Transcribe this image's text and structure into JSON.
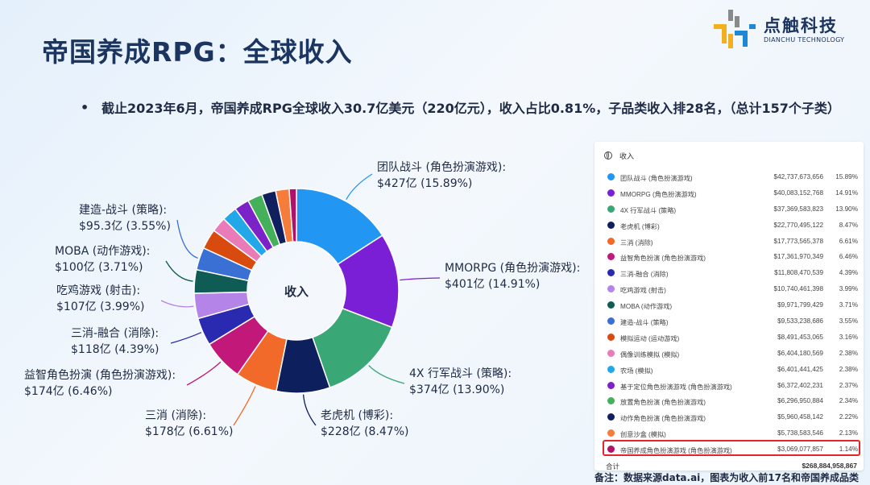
{
  "page": {
    "title": "帝国养成RPG：全球收入",
    "bullet": "截止2023年6月，帝国养成RPG全球收入30.7亿美元（220亿元），收入占比0.81%，子品类收入排28名，（总计157个子类）",
    "note": "备注：数据来源data.ai，图表为收入前17名和帝国养成品类"
  },
  "logo": {
    "name": "点触科技",
    "sub": "DIANCHU TECHNOLOGY",
    "colors": [
      "#f2b01e",
      "#1e88d6",
      "#8a8a8a"
    ]
  },
  "chart_data": {
    "type": "pie",
    "center_label": "收入",
    "slices": [
      {
        "name": "团队战斗 (角色扮演游戏)",
        "short": "团队战斗 (角色扮演游戏):",
        "value_label": "$427亿 (15.89%)",
        "value": 15.89,
        "color": "#2196f3"
      },
      {
        "name": "MMORPG (角色扮演游戏)",
        "short": "MMORPG (角色扮演游戏):",
        "value_label": "$401亿 (14.91%)",
        "value": 14.91,
        "color": "#7b1fd6"
      },
      {
        "name": "4X 行军战斗 (策略)",
        "short": "4X 行军战斗 (策略):",
        "value_label": "$374亿 (13.90%)",
        "value": 13.9,
        "color": "#3aa876"
      },
      {
        "name": "老虎机 (博彩)",
        "short": "老虎机 (博彩):",
        "value_label": "$228亿 (8.47%)",
        "value": 8.47,
        "color": "#0d1f5c"
      },
      {
        "name": "三消 (消除)",
        "short": "三消 (消除):",
        "value_label": "$178亿 (6.61%)",
        "value": 6.61,
        "color": "#f26a2a"
      },
      {
        "name": "益智角色扮演 (角色扮演游戏)",
        "short": "益智角色扮演 (角色扮演游戏):",
        "value_label": "$174亿 (6.46%)",
        "value": 6.46,
        "color": "#c2187a"
      },
      {
        "name": "三消-融合 (消除)",
        "short": "三消-融合 (消除):",
        "value_label": "$118亿 (4.39%)",
        "value": 4.39,
        "color": "#2a2ab0"
      },
      {
        "name": "吃鸡游戏 (射击)",
        "short": "吃鸡游戏 (射击):",
        "value_label": "$107亿 (3.99%)",
        "value": 3.99,
        "color": "#b584e8"
      },
      {
        "name": "MOBA (动作游戏)",
        "short": "MOBA (动作游戏):",
        "value_label": "$100亿 (3.71%)",
        "value": 3.71,
        "color": "#0f5c55"
      },
      {
        "name": "建造-战斗 (策略)",
        "short": "建造-战斗 (策略):",
        "value_label": "$95.3亿 (3.55%)",
        "value": 3.55,
        "color": "#3a6fd4"
      },
      {
        "name": "模拟运动 (运动游戏)",
        "value": 3.16,
        "color": "#d94a0f"
      },
      {
        "name": "偶像训练模拟 (模拟)",
        "value": 2.38,
        "color": "#e87bb8"
      },
      {
        "name": "农场 (模拟)",
        "value": 2.38,
        "color": "#22a8e8"
      },
      {
        "name": "基于定位角色扮演游戏 (角色扮演游戏)",
        "value": 2.37,
        "color": "#7c22c9"
      },
      {
        "name": "放置角色扮演 (角色扮演游戏)",
        "value": 2.34,
        "color": "#45b05a"
      },
      {
        "name": "动作角色扮演 (角色扮演游戏)",
        "value": 2.22,
        "color": "#10205e"
      },
      {
        "name": "创意沙盒 (模拟)",
        "value": 2.13,
        "color": "#f57c3a"
      },
      {
        "name": "帝国养成角色扮演游戏 (角色扮演游戏)",
        "value": 1.14,
        "color": "#b0126a"
      }
    ]
  },
  "legend": {
    "header": "收入",
    "rows": [
      {
        "name": "团队战斗 (角色扮演游戏)",
        "value": "$42,737,673,656",
        "pct": "15.89%",
        "color": "#2196f3"
      },
      {
        "name": "MMORPG (角色扮演游戏)",
        "value": "$40,083,152,768",
        "pct": "14.91%",
        "color": "#7b1fd6"
      },
      {
        "name": "4X 行军战斗 (策略)",
        "value": "$37,369,583,823",
        "pct": "13.90%",
        "color": "#3aa876"
      },
      {
        "name": "老虎机 (博彩)",
        "value": "$22,770,495,122",
        "pct": "8.47%",
        "color": "#0d1f5c"
      },
      {
        "name": "三消 (消除)",
        "value": "$17,773,565,378",
        "pct": "6.61%",
        "color": "#f26a2a"
      },
      {
        "name": "益智角色扮演 (角色扮演游戏)",
        "value": "$17,361,970,349",
        "pct": "6.46%",
        "color": "#c2187a"
      },
      {
        "name": "三消-融合 (消除)",
        "value": "$11,808,470,539",
        "pct": "4.39%",
        "color": "#2a2ab0"
      },
      {
        "name": "吃鸡游戏 (射击)",
        "value": "$10,740,461,398",
        "pct": "3.99%",
        "color": "#b584e8"
      },
      {
        "name": "MOBA (动作游戏)",
        "value": "$9,971,799,429",
        "pct": "3.71%",
        "color": "#0f5c55"
      },
      {
        "name": "建造-战斗 (策略)",
        "value": "$9,533,238,686",
        "pct": "3.55%",
        "color": "#3a6fd4"
      },
      {
        "name": "模拟运动 (运动游戏)",
        "value": "$8,491,453,065",
        "pct": "3.16%",
        "color": "#d94a0f"
      },
      {
        "name": "偶像训练模拟 (模拟)",
        "value": "$6,404,180,569",
        "pct": "2.38%",
        "color": "#e87bb8"
      },
      {
        "name": "农场 (模拟)",
        "value": "$6,401,441,425",
        "pct": "2.38%",
        "color": "#22a8e8"
      },
      {
        "name": "基于定位角色扮演游戏 (角色扮演游戏)",
        "value": "$6,372,402,231",
        "pct": "2.37%",
        "color": "#7c22c9"
      },
      {
        "name": "放置角色扮演 (角色扮演游戏)",
        "value": "$6,296,950,884",
        "pct": "2.34%",
        "color": "#45b05a"
      },
      {
        "name": "动作角色扮演 (角色扮演游戏)",
        "value": "$5,960,458,142",
        "pct": "2.22%",
        "color": "#10205e"
      },
      {
        "name": "创意沙盒 (模拟)",
        "value": "$5,738,583,546",
        "pct": "2.13%",
        "color": "#f57c3a"
      },
      {
        "name": "帝国养成角色扮演游戏 (角色扮演游戏)",
        "value": "$3,069,077,857",
        "pct": "1.14%",
        "color": "#b0126a"
      }
    ],
    "total_label": "合计",
    "total_value": "$268,884,958,867",
    "highlight_color": "#e3262c"
  }
}
